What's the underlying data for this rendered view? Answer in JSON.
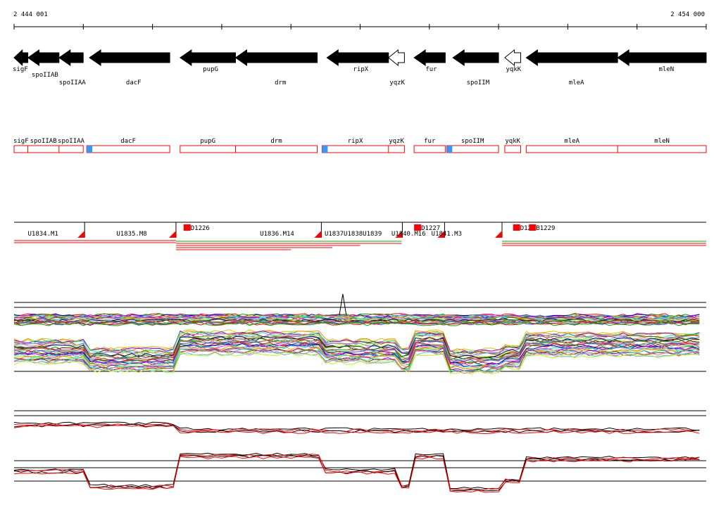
{
  "ruler": {
    "start_label": "2 444 001",
    "end_label": "2 454 000",
    "start": 2444001,
    "end": 2454000
  },
  "genes": [
    {
      "name": "sigF",
      "start": 2444001,
      "end": 2444200,
      "strand": "-",
      "style": "filled"
    },
    {
      "name": "spoIIAB",
      "start": 2444200,
      "end": 2444650,
      "strand": "-",
      "style": "filled"
    },
    {
      "name": "spoIIAA",
      "start": 2444650,
      "end": 2445000,
      "strand": "-",
      "style": "filled"
    },
    {
      "name": "dacF",
      "start": 2445090,
      "end": 2446250,
      "strand": "-",
      "style": "filled"
    },
    {
      "name": "pupG",
      "start": 2446400,
      "end": 2447200,
      "strand": "-",
      "style": "filled"
    },
    {
      "name": "drm",
      "start": 2447200,
      "end": 2448380,
      "strand": "-",
      "style": "filled"
    },
    {
      "name": "ripX",
      "start": 2448520,
      "end": 2449410,
      "strand": "-",
      "style": "filled"
    },
    {
      "name": "yqzK",
      "start": 2449410,
      "end": 2449640,
      "strand": "-",
      "style": "open"
    },
    {
      "name": "fur",
      "start": 2449780,
      "end": 2450230,
      "strand": "-",
      "style": "filled"
    },
    {
      "name": "spoIIM",
      "start": 2450340,
      "end": 2451000,
      "strand": "-",
      "style": "filled"
    },
    {
      "name": "yqkK",
      "start": 2451090,
      "end": 2451320,
      "strand": "-",
      "style": "open"
    },
    {
      "name": "mleA",
      "start": 2451400,
      "end": 2452720,
      "strand": "-",
      "style": "filled"
    },
    {
      "name": "mleN",
      "start": 2452720,
      "end": 2454000,
      "strand": "-",
      "style": "filled"
    }
  ],
  "operon_row": {
    "labels": [
      {
        "text": "sigF",
        "at": 2444001
      },
      {
        "text": "spoIIAB",
        "at": 2444200
      },
      {
        "text": "spoIIAA",
        "at": 2444650
      },
      {
        "text": "dacF",
        "at": 2445050
      },
      {
        "text": "pupG",
        "at": 2446400
      },
      {
        "text": "drm",
        "at": 2447200
      },
      {
        "text": "ripX",
        "at": 2448450
      },
      {
        "text": "yqzK",
        "at": 2449410
      },
      {
        "text": "fur",
        "at": 2449780
      },
      {
        "text": "spoIIM",
        "at": 2450250
      },
      {
        "text": "yqkK",
        "at": 2451090
      },
      {
        "text": "mleA",
        "at": 2451400
      },
      {
        "text": "mleN",
        "at": 2452720
      }
    ],
    "boxes": [
      {
        "start": 2444001,
        "end": 2445000
      },
      {
        "start": 2445050,
        "end": 2446250
      },
      {
        "start": 2446400,
        "end": 2448380
      },
      {
        "start": 2448450,
        "end": 2449640
      },
      {
        "start": 2449780,
        "end": 2450230
      },
      {
        "start": 2450250,
        "end": 2451000
      },
      {
        "start": 2451090,
        "end": 2451320
      },
      {
        "start": 2451400,
        "end": 2454000
      }
    ],
    "dividers": [
      2444200,
      2444650,
      2447200,
      2449410,
      2452720
    ],
    "promoters": [
      2445050,
      2448450,
      2450250
    ],
    "colors": {
      "box": "#ff0000",
      "promoter": "#3399ff"
    }
  },
  "transcripts": {
    "labels": [
      {
        "text": "U1834.M1",
        "at": 2444420
      },
      {
        "text": "U1835.M8",
        "at": 2445700
      },
      {
        "text": "D1226",
        "at": 2446450
      },
      {
        "text": "U1836.M14",
        "at": 2447800
      },
      {
        "text": "U1837U1838U1839",
        "at": 2448900
      },
      {
        "text": "U1840.M16",
        "at": 2449700
      },
      {
        "text": "D1227",
        "at": 2449780
      },
      {
        "text": "U1841.M3",
        "at": 2450250
      },
      {
        "text": "D12",
        "at": 2451210
      },
      {
        "text": "B1229",
        "at": 2451440
      }
    ],
    "segment_boundaries": [
      2445020,
      2446340,
      2448440,
      2449610,
      2450220,
      2451050
    ],
    "colors": {
      "marker": "#ff0000",
      "line_red": "#ff0000",
      "line_green": "#00aa00",
      "line_black": "#000000"
    }
  },
  "expression": {
    "series_colors": [
      "#ff0000",
      "#00aa00",
      "#0000ff",
      "#ff00ff",
      "#00cccc",
      "#cccc00",
      "#ff8800",
      "#8800ff",
      "#00ff88",
      "#884400",
      "#ff66aa",
      "#66aaff",
      "#aaff00",
      "#000088",
      "#880000",
      "#008800",
      "#888888",
      "#ff4444",
      "#44aa44",
      "#4444ff"
    ],
    "summary_colors": [
      "#000000",
      "#ff0000"
    ],
    "level_steps": [
      {
        "start": 2444001,
        "end": 2445020,
        "level": 0
      },
      {
        "start": 2445020,
        "end": 2446340,
        "level": -1
      },
      {
        "start": 2446340,
        "end": 2448440,
        "level": 1
      },
      {
        "start": 2448440,
        "end": 2449510,
        "level": 0
      },
      {
        "start": 2449510,
        "end": 2449780,
        "level": -1
      },
      {
        "start": 2449780,
        "end": 2450220,
        "level": 1
      },
      {
        "start": 2450220,
        "end": 2451050,
        "level": -1.2
      },
      {
        "start": 2451050,
        "end": 2451400,
        "level": -0.6
      },
      {
        "start": 2451400,
        "end": 2454000,
        "level": 0.8
      }
    ]
  }
}
